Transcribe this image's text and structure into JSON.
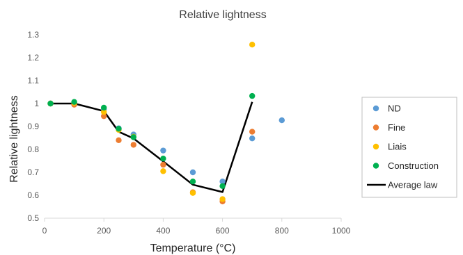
{
  "chart_data": {
    "type": "scatter",
    "title": "Relative lightness",
    "xlabel": "Temperature (°C)",
    "ylabel": "Relative lightness",
    "xlim": [
      0,
      1000
    ],
    "ylim": [
      0.5,
      1.3
    ],
    "x_ticks": [
      0,
      200,
      400,
      600,
      800,
      1000
    ],
    "y_ticks": [
      0.5,
      0.6,
      0.7,
      0.8,
      0.9,
      1,
      1.1,
      1.2,
      1.3
    ],
    "y_tick_labels": [
      "0.5",
      "0.6",
      "0.7",
      "0.8",
      "0.9",
      "1",
      "1.1",
      "1.2",
      "1.3"
    ],
    "grid": false,
    "legend_position": "right",
    "series": [
      {
        "name": "ND",
        "kind": "scatter",
        "color": "#5B9BD5",
        "points": [
          [
            20,
            1.0
          ],
          [
            100,
            1.005
          ],
          [
            200,
            0.975
          ],
          [
            250,
            0.892
          ],
          [
            300,
            0.865
          ],
          [
            400,
            0.795
          ],
          [
            500,
            0.7
          ],
          [
            600,
            0.66
          ],
          [
            700,
            0.848
          ],
          [
            800,
            0.927
          ]
        ]
      },
      {
        "name": "Fine",
        "kind": "scatter",
        "color": "#ED7D31",
        "points": [
          [
            20,
            1.0
          ],
          [
            100,
            0.995
          ],
          [
            200,
            0.945
          ],
          [
            250,
            0.84
          ],
          [
            300,
            0.82
          ],
          [
            400,
            0.733
          ],
          [
            500,
            0.613
          ],
          [
            600,
            0.573
          ],
          [
            700,
            0.877
          ]
        ]
      },
      {
        "name": "Liais",
        "kind": "scatter",
        "color": "#FFC000",
        "points": [
          [
            20,
            1.0
          ],
          [
            100,
            1.003
          ],
          [
            200,
            0.963
          ],
          [
            250,
            0.885
          ],
          [
            300,
            0.855
          ],
          [
            400,
            0.705
          ],
          [
            500,
            0.61
          ],
          [
            600,
            0.583
          ],
          [
            700,
            1.257
          ]
        ]
      },
      {
        "name": "Construction",
        "kind": "scatter",
        "color": "#00B050",
        "points": [
          [
            20,
            1.0
          ],
          [
            100,
            1.007
          ],
          [
            200,
            0.982
          ],
          [
            250,
            0.89
          ],
          [
            300,
            0.853
          ],
          [
            400,
            0.76
          ],
          [
            500,
            0.66
          ],
          [
            600,
            0.64
          ],
          [
            700,
            1.033
          ]
        ]
      },
      {
        "name": "Average law",
        "kind": "line",
        "color": "#000000",
        "points": [
          [
            20,
            1.0
          ],
          [
            100,
            1.0
          ],
          [
            200,
            0.967
          ],
          [
            250,
            0.877
          ],
          [
            300,
            0.848
          ],
          [
            400,
            0.748
          ],
          [
            500,
            0.646
          ],
          [
            600,
            0.614
          ],
          [
            700,
            1.007
          ]
        ]
      }
    ]
  }
}
